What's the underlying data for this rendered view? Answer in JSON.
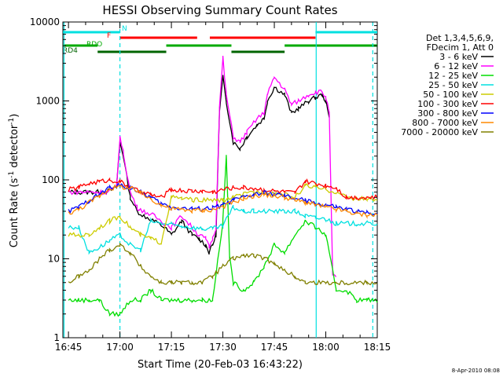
{
  "chart_data": {
    "type": "line",
    "title": "HESSI Observing Summary Count Rates",
    "xlabel": "Start Time (20-Feb-03 16:43:22)",
    "ylabel_main": "Count Rate (s",
    "ylabel_sup1": "-1",
    "ylabel_mid": " detector",
    "ylabel_sup2": "-1",
    "ylabel_end": ")",
    "x_ticks": [
      "16:45",
      "17:00",
      "17:15",
      "17:30",
      "17:45",
      "18:00",
      "18:15"
    ],
    "x_tick_minutes": [
      0,
      15,
      30,
      45,
      60,
      75,
      90
    ],
    "xlim_minutes": [
      -1.63,
      90.0
    ],
    "y_scale": "log",
    "ylim": [
      1,
      10000
    ],
    "y_ticks": [
      "1",
      "10",
      "100",
      "1000",
      "10000"
    ],
    "y_tick_values": [
      1,
      10,
      100,
      1000,
      10000
    ],
    "legend_header": [
      "Det 1,3,4,5,6,9,",
      "FDecim 1, Att 0"
    ],
    "legend_position": "right",
    "series": [
      {
        "name": "3 - 6 keV",
        "color": "#000000",
        "x": [
          0,
          4,
          8,
          11,
          14,
          15,
          16,
          18,
          20,
          22,
          25,
          28,
          30,
          33,
          36,
          38,
          40,
          41,
          42,
          43,
          44,
          45,
          46,
          48,
          50,
          52,
          55,
          57,
          58,
          60,
          63,
          65,
          67,
          70,
          72,
          74,
          75,
          76,
          77,
          78,
          80,
          82,
          85,
          88,
          90
        ],
        "y": [
          70,
          70,
          70,
          70,
          80,
          300,
          200,
          60,
          40,
          35,
          30,
          25,
          20,
          30,
          20,
          18,
          15,
          12,
          15,
          20,
          700,
          2000,
          1000,
          300,
          250,
          350,
          500,
          600,
          1000,
          1500,
          1200,
          700,
          800,
          1000,
          1100,
          1200,
          1000,
          600,
          null,
          null,
          null,
          null,
          null,
          null,
          null
        ]
      },
      {
        "name": "6 - 12 keV",
        "color": "#ff00ff",
        "x": [
          0,
          4,
          8,
          11,
          14,
          15,
          16,
          18,
          20,
          22,
          25,
          28,
          30,
          33,
          36,
          38,
          40,
          41,
          42,
          43,
          44,
          45,
          46,
          48,
          50,
          52,
          55,
          57,
          58,
          60,
          63,
          65,
          67,
          70,
          72,
          74,
          75,
          76,
          77,
          78,
          80,
          82,
          85,
          88,
          90
        ],
        "y": [
          70,
          70,
          70,
          70,
          80,
          350,
          220,
          70,
          45,
          40,
          35,
          28,
          25,
          35,
          25,
          20,
          18,
          14,
          18,
          25,
          800,
          3500,
          1200,
          350,
          300,
          400,
          600,
          700,
          1200,
          2000,
          1400,
          900,
          1000,
          1200,
          1300,
          1300,
          1100,
          700,
          6,
          6,
          null,
          null,
          null,
          null,
          null
        ],
        "start_values": [
          6,
          6,
          5,
          5,
          8,
          8,
          6
        ]
      },
      {
        "name": "12 - 25 keV",
        "color": "#00dd00",
        "x": [
          0,
          3,
          6,
          9,
          12,
          15,
          18,
          21,
          24,
          27,
          30,
          33,
          36,
          39,
          42,
          45,
          46,
          47,
          48,
          51,
          54,
          57,
          60,
          63,
          66,
          69,
          72,
          75,
          78,
          81,
          84,
          87,
          90
        ],
        "y": [
          3,
          3,
          3,
          3,
          2,
          2,
          3,
          3,
          4,
          3,
          3,
          3,
          3,
          3,
          3,
          30,
          200,
          10,
          5,
          4,
          5,
          8,
          15,
          12,
          20,
          30,
          25,
          20,
          4,
          4,
          3,
          3,
          3
        ]
      },
      {
        "name": "25 - 50 keV",
        "color": "#00e0e0",
        "x": [
          0,
          3,
          6,
          9,
          12,
          15,
          18,
          21,
          24,
          27,
          30,
          33,
          36,
          39,
          42,
          45,
          48,
          51,
          54,
          57,
          60,
          63,
          66,
          69,
          72,
          75,
          78,
          81,
          84,
          87,
          90
        ],
        "y": [
          25,
          25,
          12,
          14,
          17,
          20,
          15,
          13,
          30,
          28,
          27,
          26,
          25,
          24,
          24,
          26,
          45,
          40,
          40,
          40,
          40,
          40,
          40,
          35,
          33,
          32,
          28,
          28,
          28,
          28,
          28
        ]
      },
      {
        "name": "50 - 100 keV",
        "color": "#cccc00",
        "x": [
          0,
          3,
          6,
          9,
          12,
          15,
          18,
          21,
          24,
          27,
          30,
          33,
          36,
          39,
          42,
          45,
          48,
          51,
          54,
          57,
          60,
          63,
          66,
          69,
          72,
          75,
          78,
          81,
          84,
          87,
          90
        ],
        "y": [
          20,
          20,
          20,
          25,
          30,
          35,
          25,
          20,
          18,
          16,
          60,
          58,
          56,
          55,
          55,
          55,
          60,
          65,
          70,
          70,
          68,
          65,
          60,
          85,
          80,
          75,
          70,
          60,
          58,
          57,
          56
        ]
      },
      {
        "name": "100 - 300 keV",
        "color": "#ff0000",
        "x": [
          0,
          3,
          6,
          9,
          12,
          15,
          18,
          21,
          24,
          27,
          30,
          33,
          36,
          39,
          42,
          45,
          48,
          51,
          54,
          57,
          60,
          63,
          66,
          69,
          72,
          75,
          78,
          81,
          84,
          87,
          90
        ],
        "y": [
          75,
          80,
          90,
          95,
          100,
          95,
          80,
          70,
          65,
          60,
          75,
          73,
          72,
          72,
          70,
          75,
          80,
          80,
          78,
          75,
          72,
          70,
          68,
          95,
          90,
          85,
          80,
          60,
          60,
          60,
          60
        ]
      },
      {
        "name": "300 - 800 keV",
        "color": "#0000ff",
        "x": [
          0,
          3,
          6,
          9,
          12,
          15,
          18,
          21,
          24,
          27,
          30,
          33,
          36,
          39,
          42,
          45,
          48,
          51,
          54,
          57,
          60,
          63,
          66,
          69,
          72,
          75,
          78,
          81,
          84,
          87,
          90
        ],
        "y": [
          40,
          45,
          55,
          65,
          80,
          85,
          80,
          70,
          60,
          50,
          45,
          44,
          43,
          43,
          44,
          48,
          55,
          60,
          65,
          68,
          66,
          62,
          58,
          55,
          50,
          48,
          45,
          42,
          40,
          38,
          38
        ]
      },
      {
        "name": "800 - 7000 keV",
        "color": "#ff8800",
        "x": [
          0,
          3,
          6,
          9,
          12,
          15,
          18,
          21,
          24,
          27,
          30,
          33,
          36,
          39,
          42,
          45,
          48,
          51,
          54,
          57,
          60,
          63,
          66,
          69,
          72,
          75,
          78,
          81,
          84,
          87,
          90
        ],
        "y": [
          38,
          42,
          52,
          62,
          78,
          82,
          78,
          68,
          58,
          48,
          43,
          42,
          41,
          41,
          42,
          46,
          52,
          58,
          62,
          65,
          63,
          60,
          55,
          52,
          48,
          45,
          42,
          40,
          37,
          36,
          36
        ]
      },
      {
        "name": "7000 - 20000 keV",
        "color": "#808000",
        "x": [
          0,
          3,
          6,
          9,
          12,
          15,
          18,
          21,
          24,
          27,
          30,
          33,
          36,
          39,
          42,
          45,
          48,
          51,
          54,
          57,
          60,
          63,
          66,
          69,
          72,
          75,
          78,
          81,
          84,
          87,
          90
        ],
        "y": [
          5,
          6,
          7,
          10,
          13,
          15,
          12,
          8,
          6,
          5,
          5,
          5,
          5,
          5,
          6,
          8,
          10,
          11,
          11,
          10,
          9,
          7,
          6,
          5,
          5,
          5,
          5,
          5,
          5,
          5,
          5
        ]
      }
    ],
    "flags": [
      {
        "name": "N",
        "color": "#00e0e0",
        "label": "N",
        "segments": [
          [
            -1.6,
            15.0
          ],
          [
            72.0,
            90.0
          ]
        ]
      },
      {
        "name": "F",
        "color": "#ff0000",
        "label": "F",
        "segments": [
          [
            15.0,
            37.5
          ],
          [
            41.2,
            72.0
          ]
        ]
      },
      {
        "name": "RDO",
        "color": "#00aa00",
        "label": "RDO",
        "segments": [
          [
            -1.6,
            8.5
          ],
          [
            28.5,
            47.5
          ],
          [
            63.0,
            90.0
          ]
        ]
      },
      {
        "name": "RD4",
        "color": "#006400",
        "label": "RD4",
        "segments": [
          [
            8.5,
            28.5
          ],
          [
            47.5,
            63.0
          ]
        ]
      }
    ],
    "vlines": [
      {
        "x": -1.3,
        "style": "solid"
      },
      {
        "x": 15.0,
        "style": "dashed"
      },
      {
        "x": 72.2,
        "style": "solid"
      },
      {
        "x": 88.7,
        "style": "dashed"
      }
    ],
    "footer_date": "8-Apr-2010 08:08"
  }
}
